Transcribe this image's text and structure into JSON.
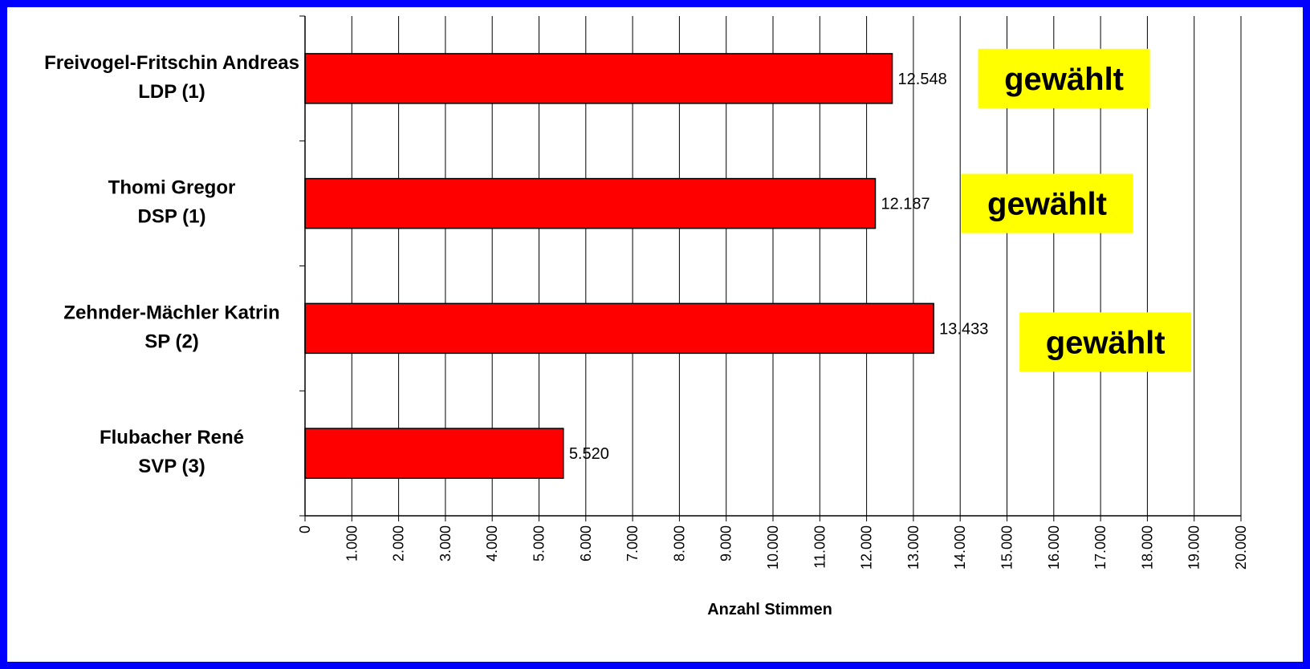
{
  "chart_data": {
    "type": "bar",
    "orientation": "horizontal",
    "categories": [
      [
        "Freivogel-Fritschin Andreas",
        "LDP (1)"
      ],
      [
        "Thomi Gregor",
        "DSP (1)"
      ],
      [
        "Zehnder-Mächler Katrin",
        "SP (2)"
      ],
      [
        "Flubacher René",
        "SVP (3)"
      ]
    ],
    "values": [
      12548,
      12187,
      13433,
      5520
    ],
    "value_labels": [
      "12.548",
      "12.187",
      "13.433",
      "5.520"
    ],
    "annotations": [
      "gewählt",
      "gewählt",
      "gewählt",
      ""
    ],
    "xlabel": "Anzahl Stimmen",
    "ylabel": "",
    "xlim": [
      0,
      20000
    ],
    "x_ticks": [
      0,
      1000,
      2000,
      3000,
      4000,
      5000,
      6000,
      7000,
      8000,
      9000,
      10000,
      11000,
      12000,
      13000,
      14000,
      15000,
      16000,
      17000,
      18000,
      19000,
      20000
    ],
    "x_tick_labels": [
      "0",
      "1.000",
      "2.000",
      "3.000",
      "4.000",
      "5.000",
      "6.000",
      "7.000",
      "8.000",
      "9.000",
      "10.000",
      "11.000",
      "12.000",
      "13.000",
      "14.000",
      "15.000",
      "16.000",
      "17.000",
      "18.000",
      "19.000",
      "20.000"
    ],
    "grid": "vertical",
    "legend": "none",
    "colors": {
      "bar": "#FF0000",
      "badge": "#FFFF00",
      "border": "#0000FF"
    }
  }
}
